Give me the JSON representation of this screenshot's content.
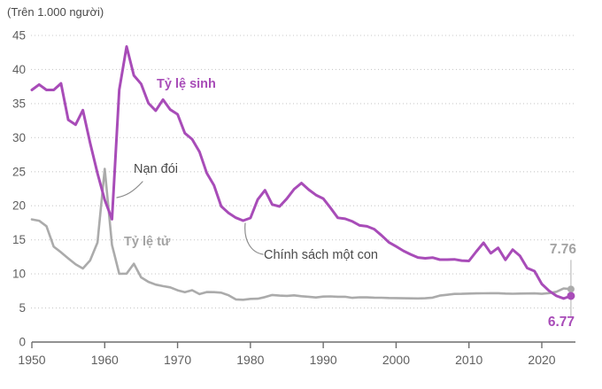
{
  "colors": {
    "birth_line": "#a84cb8",
    "death_line": "#ababab",
    "death_label": "#a3a3a3",
    "grid": "#c9c9c9",
    "axis": "#6e6e6e",
    "tick_text": "#5f5f5f",
    "annotation_text": "#4a4a4a",
    "marker_line": "#b8b8b8",
    "connector": "#8c8c8c",
    "background": "#ffffff"
  },
  "chart_data": {
    "type": "line",
    "title": "(Trên 1.000 người)",
    "xlabel": "",
    "ylabel": "(Trên 1.000 người)",
    "ylim": [
      0,
      45
    ],
    "yticks": [
      0,
      5,
      10,
      15,
      20,
      25,
      30,
      35,
      40,
      45
    ],
    "xticks": [
      1950,
      1960,
      1970,
      1980,
      1990,
      2000,
      2010,
      2020
    ],
    "grid": "horizontal-dotted",
    "legend": "inline-labels",
    "years": [
      1950,
      1951,
      1952,
      1953,
      1954,
      1955,
      1956,
      1957,
      1958,
      1959,
      1960,
      1961,
      1962,
      1963,
      1964,
      1965,
      1966,
      1967,
      1968,
      1969,
      1970,
      1971,
      1972,
      1973,
      1974,
      1975,
      1976,
      1977,
      1978,
      1979,
      1980,
      1981,
      1982,
      1983,
      1984,
      1985,
      1986,
      1987,
      1988,
      1989,
      1990,
      1991,
      1992,
      1993,
      1994,
      1995,
      1996,
      1997,
      1998,
      1999,
      2000,
      2001,
      2002,
      2003,
      2004,
      2005,
      2006,
      2007,
      2008,
      2009,
      2010,
      2011,
      2012,
      2013,
      2014,
      2015,
      2016,
      2017,
      2018,
      2019,
      2020,
      2021,
      2022,
      2023,
      2024
    ],
    "series": [
      {
        "name": "Tỷ lệ sinh",
        "color": "#a84cb8",
        "values": [
          37.0,
          37.8,
          37.0,
          37.0,
          37.97,
          32.6,
          31.9,
          34.03,
          29.22,
          24.78,
          20.86,
          18.02,
          37.01,
          43.37,
          39.14,
          37.88,
          35.05,
          33.96,
          35.59,
          34.11,
          33.43,
          30.65,
          29.77,
          27.93,
          24.82,
          23.01,
          19.91,
          18.93,
          18.25,
          17.82,
          18.21,
          20.91,
          22.28,
          20.19,
          19.9,
          21.04,
          22.43,
          23.33,
          22.37,
          21.58,
          21.06,
          19.68,
          18.24,
          18.09,
          17.7,
          17.12,
          16.98,
          16.57,
          15.64,
          14.64,
          14.03,
          13.38,
          12.86,
          12.41,
          12.29,
          12.4,
          12.09,
          12.1,
          12.14,
          11.95,
          11.9,
          13.27,
          14.57,
          13.03,
          13.83,
          12.07,
          13.57,
          12.64,
          10.86,
          10.41,
          8.52,
          7.52,
          6.77,
          6.39,
          6.77
        ]
      },
      {
        "name": "Tỷ lệ tử",
        "color": "#ababab",
        "values": [
          18.0,
          17.8,
          17.0,
          14.0,
          13.18,
          12.28,
          11.4,
          10.8,
          11.98,
          14.59,
          25.43,
          14.24,
          10.02,
          10.04,
          11.5,
          9.5,
          8.83,
          8.43,
          8.21,
          8.03,
          7.6,
          7.32,
          7.61,
          7.04,
          7.34,
          7.32,
          7.25,
          6.87,
          6.25,
          6.21,
          6.34,
          6.36,
          6.6,
          6.9,
          6.82,
          6.78,
          6.86,
          6.72,
          6.64,
          6.54,
          6.67,
          6.7,
          6.64,
          6.64,
          6.49,
          6.57,
          6.56,
          6.51,
          6.5,
          6.46,
          6.45,
          6.43,
          6.41,
          6.4,
          6.42,
          6.51,
          6.81,
          6.93,
          7.06,
          7.08,
          7.11,
          7.14,
          7.15,
          7.16,
          7.16,
          7.11,
          7.09,
          7.11,
          7.13,
          7.14,
          7.07,
          7.18,
          7.37,
          7.87,
          7.76
        ]
      }
    ],
    "annotations": [
      {
        "text": "Nạn đói",
        "target_year": 1960,
        "target_series": "Tỷ lệ tử"
      },
      {
        "text": "Chính sách một con",
        "target_year": 1979,
        "target_series": "Tỷ lệ sinh"
      }
    ],
    "end_labels": {
      "death": "7.76",
      "birth": "6.77",
      "year": 2024
    }
  }
}
